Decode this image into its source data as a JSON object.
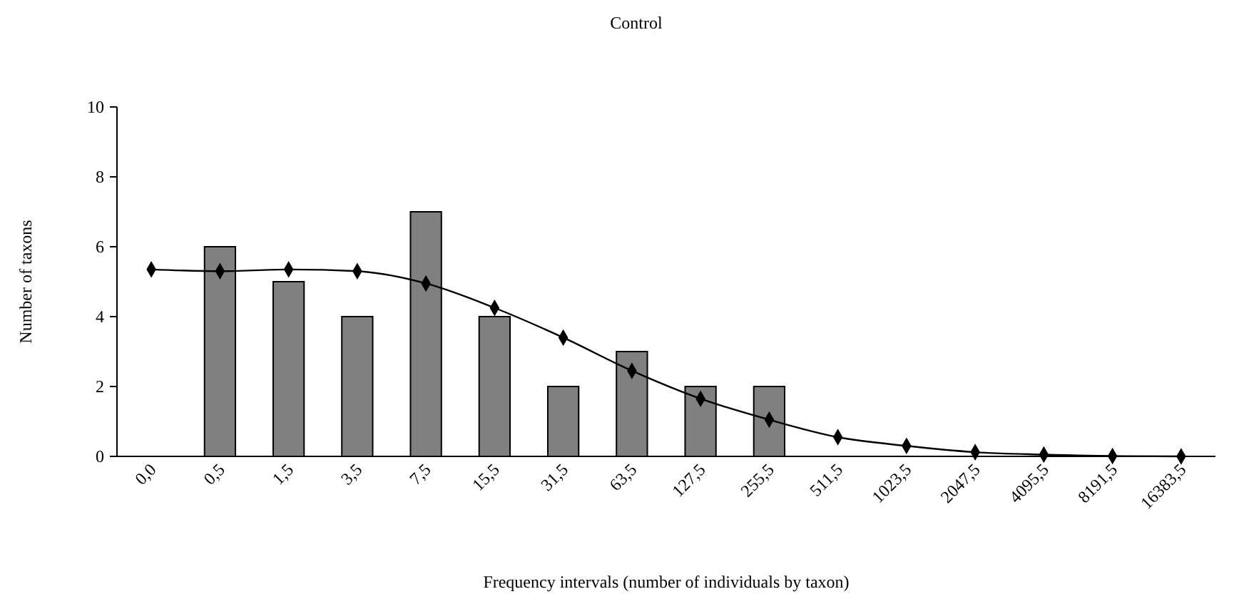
{
  "chart_data": {
    "type": "bar",
    "title": "Control",
    "xlabel": "Frequency intervals (number of individuals by taxon)",
    "ylabel": "Number of taxons",
    "categories": [
      "0,0",
      "0,5",
      "1,5",
      "3,5",
      "7,5",
      "15,5",
      "31,5",
      "63,5",
      "127,5",
      "255,5",
      "511,5",
      "1023,5",
      "2047,5",
      "4095,5",
      "8191,5",
      "16383,5"
    ],
    "series": [
      {
        "color": "#808080",
        "values": [
          null,
          6,
          5,
          4,
          7,
          4,
          2,
          3,
          2,
          2,
          null,
          null,
          null,
          null,
          null,
          null
        ]
      },
      {
        "type": "line",
        "color": "#000000",
        "marker": "diamond",
        "values": [
          5.35,
          5.3,
          5.35,
          5.3,
          4.95,
          4.25,
          3.4,
          2.45,
          1.65,
          1.05,
          0.55,
          0.3,
          0.12,
          0.05,
          0.01,
          0
        ]
      }
    ],
    "ylim": [
      0,
      10
    ],
    "yticks": [
      0,
      2,
      4,
      6,
      8,
      10
    ],
    "grid": false
  }
}
